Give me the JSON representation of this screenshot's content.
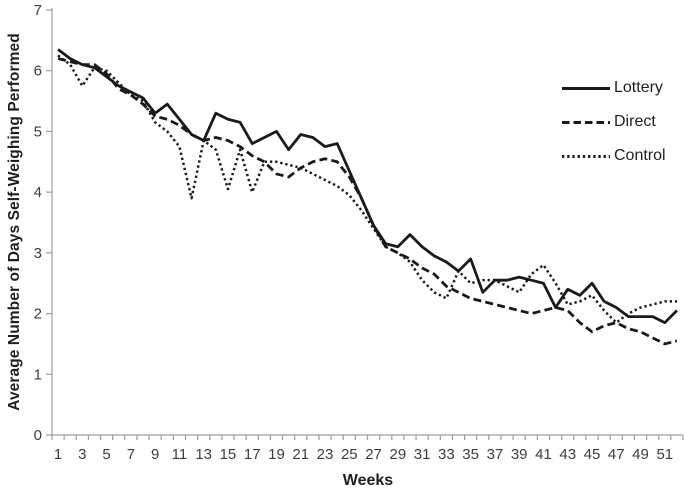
{
  "chart_data": {
    "type": "line",
    "title": "",
    "xlabel": "Weeks",
    "ylabel": "Average Number of Days Self-Weighing Performed",
    "x": [
      1,
      2,
      3,
      4,
      5,
      6,
      7,
      8,
      9,
      10,
      11,
      12,
      13,
      14,
      15,
      16,
      17,
      18,
      19,
      20,
      21,
      22,
      23,
      24,
      25,
      26,
      27,
      28,
      29,
      30,
      31,
      32,
      33,
      34,
      35,
      36,
      37,
      38,
      39,
      40,
      41,
      42,
      43,
      44,
      45,
      46,
      47,
      48,
      49,
      50,
      51,
      52
    ],
    "x_tick_labels": [
      "1",
      "3",
      "5",
      "7",
      "9",
      "11",
      "13",
      "15",
      "17",
      "19",
      "21",
      "23",
      "25",
      "27",
      "29",
      "31",
      "33",
      "35",
      "37",
      "39",
      "41",
      "43",
      "45",
      "47",
      "49",
      "51"
    ],
    "ylim": [
      0,
      7
    ],
    "y_ticks": [
      0,
      1,
      2,
      3,
      4,
      5,
      6,
      7
    ],
    "grid": false,
    "legend_position": "top-right",
    "line_color": "#1a1a1a",
    "axis_color": "#9d9d9d",
    "tick_label_color": "#3d3d3d",
    "series": [
      {
        "name": "Lottery",
        "style": "solid",
        "values": [
          6.35,
          6.2,
          6.1,
          6.05,
          5.9,
          5.75,
          5.65,
          5.55,
          5.3,
          5.45,
          5.2,
          4.95,
          4.85,
          5.3,
          5.2,
          5.15,
          4.8,
          4.9,
          5.0,
          4.7,
          4.95,
          4.9,
          4.75,
          4.8,
          4.35,
          3.9,
          3.45,
          3.15,
          3.1,
          3.3,
          3.1,
          2.95,
          2.85,
          2.7,
          2.9,
          2.35,
          2.55,
          2.55,
          2.6,
          2.55,
          2.5,
          2.1,
          2.4,
          2.3,
          2.5,
          2.2,
          2.1,
          1.95,
          1.95,
          1.95,
          1.85,
          2.05
        ]
      },
      {
        "name": "Direct",
        "style": "dashed",
        "values": [
          6.2,
          6.15,
          6.1,
          6.1,
          5.95,
          5.7,
          5.6,
          5.45,
          5.25,
          5.2,
          5.1,
          4.95,
          4.85,
          4.9,
          4.85,
          4.75,
          4.6,
          4.5,
          4.3,
          4.25,
          4.4,
          4.5,
          4.55,
          4.5,
          4.25,
          3.9,
          3.45,
          3.1,
          3.0,
          2.9,
          2.75,
          2.65,
          2.45,
          2.35,
          2.25,
          2.2,
          2.15,
          2.1,
          2.05,
          2.0,
          2.05,
          2.1,
          2.05,
          1.85,
          1.7,
          1.8,
          1.85,
          1.75,
          1.7,
          1.6,
          1.5,
          1.55
        ]
      },
      {
        "name": "Control",
        "style": "dotted",
        "values": [
          6.25,
          6.1,
          5.75,
          6.05,
          6.0,
          5.8,
          5.6,
          5.5,
          5.15,
          5.0,
          4.75,
          3.9,
          4.85,
          4.7,
          4.05,
          4.7,
          4.0,
          4.5,
          4.5,
          4.45,
          4.4,
          4.3,
          4.2,
          4.1,
          3.95,
          3.7,
          3.4,
          3.1,
          3.0,
          2.85,
          2.55,
          2.35,
          2.25,
          2.7,
          2.5,
          2.55,
          2.55,
          2.45,
          2.35,
          2.65,
          2.8,
          2.5,
          2.15,
          2.2,
          2.3,
          2.05,
          1.85,
          2.0,
          2.1,
          2.15,
          2.2,
          2.2
        ]
      }
    ]
  }
}
